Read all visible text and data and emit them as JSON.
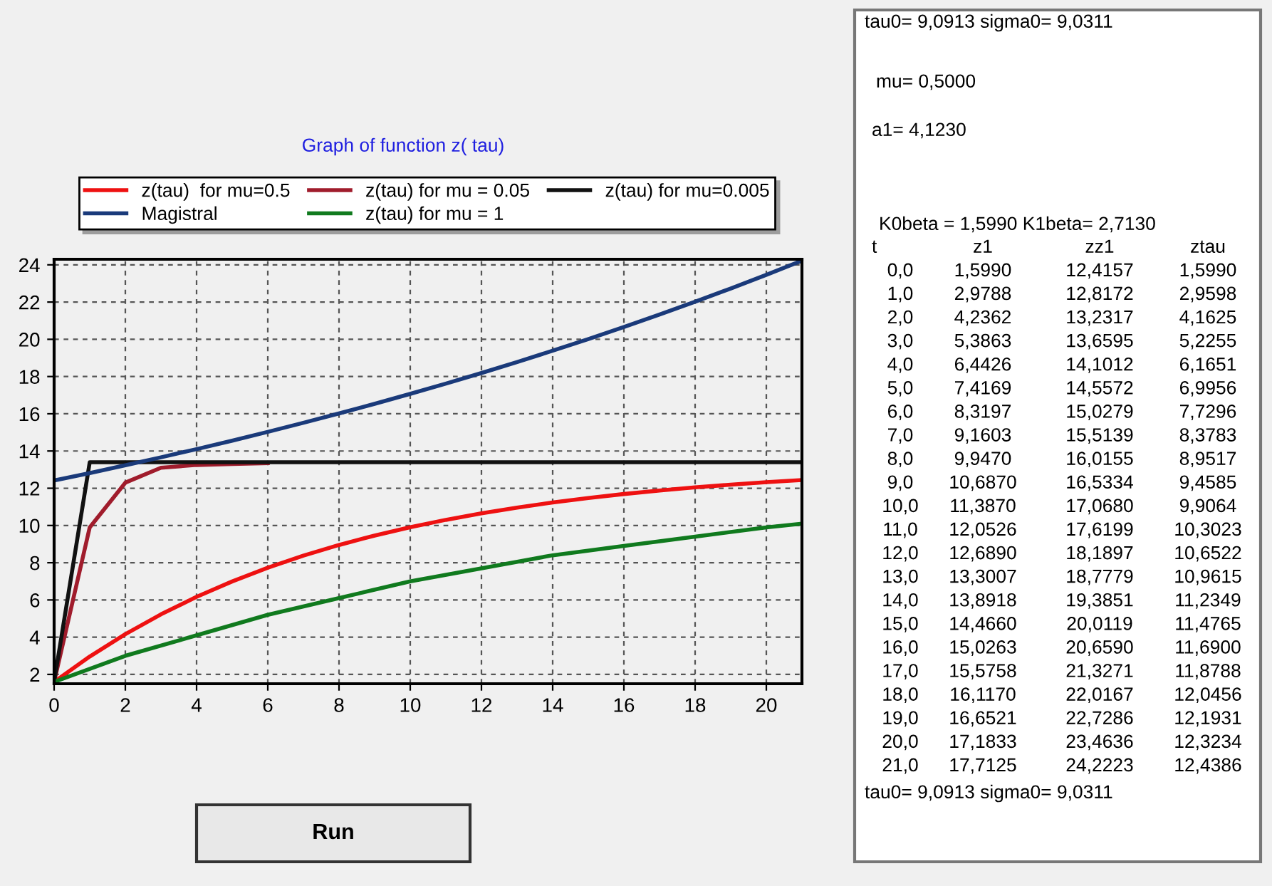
{
  "chart_data": {
    "type": "line",
    "title": "Graph of function z( tau)",
    "x": [
      0,
      1,
      2,
      3,
      4,
      5,
      6,
      7,
      8,
      9,
      10,
      11,
      12,
      13,
      14,
      15,
      16,
      17,
      18,
      19,
      20,
      21
    ],
    "series": [
      {
        "name": "z(tau)  for mu=0.5",
        "color": "#ee1111",
        "values": [
          1.599,
          2.9598,
          4.1625,
          5.2255,
          6.1651,
          6.9956,
          7.7296,
          8.3783,
          8.9517,
          9.4585,
          9.9064,
          10.3023,
          10.6522,
          10.9615,
          11.2349,
          11.4765,
          11.69,
          11.8788,
          12.0456,
          12.1931,
          12.3234,
          12.4386
        ]
      },
      {
        "name": "z(tau) for mu = 0.05",
        "color": "#a01c2c",
        "x": [
          0,
          1,
          2,
          3,
          4,
          5,
          6
        ],
        "values": [
          1.6,
          9.9,
          12.3,
          13.1,
          13.25,
          13.3,
          13.35
        ]
      },
      {
        "name": "z(tau) for mu=0.005",
        "color": "#111111",
        "x": [
          0,
          1,
          21
        ],
        "values": [
          1.6,
          13.4,
          13.4
        ]
      },
      {
        "name": "Magistral",
        "color": "#1a3a7a",
        "values": [
          12.4157,
          12.8172,
          13.2317,
          13.6595,
          14.1012,
          14.5572,
          15.0279,
          15.5139,
          16.0155,
          16.5334,
          17.068,
          17.6199,
          18.1897,
          18.7779,
          19.3851,
          20.0119,
          20.659,
          21.3271,
          22.0167,
          22.7286,
          23.4636,
          24.2223
        ]
      },
      {
        "name": "z(tau) for mu = 1",
        "color": "#107a1e",
        "x": [
          0,
          2,
          4,
          6,
          8,
          10,
          12,
          14,
          16,
          18,
          20,
          21
        ],
        "values": [
          1.6,
          3.0,
          4.1,
          5.2,
          6.1,
          7.0,
          7.7,
          8.4,
          8.9,
          9.4,
          9.9,
          10.1
        ]
      }
    ],
    "xlim": [
      0,
      21
    ],
    "ylim": [
      1.5,
      24.3
    ],
    "xticks": [
      0,
      2,
      4,
      6,
      8,
      10,
      12,
      14,
      16,
      18,
      20
    ],
    "yticks": [
      2,
      4,
      6,
      8,
      10,
      12,
      14,
      16,
      18,
      20,
      22,
      24
    ],
    "grid": true,
    "line_style": "solid",
    "legend": "top",
    "annotations": [
      "tau0= 9,0913 sigma0= 9,0311",
      "mu= 0,5000",
      "a1= 4,1230",
      "K0beta = 1,5990 K1beta= 2,7130",
      "t z1 zz1 ztau",
      "0,0 1,5990 12,4157 1,5990",
      "1,0 2,9788 12,8172 2,9598",
      "2,0 4,2362 13,2317 4,1625",
      "3,0 5,3863 13,6595 5,2255",
      "4,0 6,4426 14,1012 6,1651",
      "5,0 7,4169 14,5572 6,9956",
      "6,0 8,3197 15,0279 7,7296",
      "7,0 9,1603 15,5139 8,3783",
      "8,0 9,9470 16,0155 8,9517",
      "9,0 10,6870 16,5334 9,4585",
      "10,0 11,3870 17,0680 9,9064",
      "11,0 12,0526 17,6199 10,3023",
      "12,0 12,6890 18,1897 10,6522",
      "13,0 13,3007 18,7779 10,9615",
      "14,0 13,8918 19,3851 11,2349",
      "15,0 14,4660 20,0119 11,4765",
      "16,0 15,0263 20,6590 11,6900",
      "17,0 15,5758 21,3271 11,8788",
      "18,0 16,1170 22,0167 12,0456",
      "19,0 16,6521 22,7286 12,1931",
      "20,0 17,1833 23,4636 12,3234",
      "21,0 17,7125 24,2223 12,4386",
      "tau0= 9,0913 sigma0= 9,0311",
      "Run"
    ]
  }
}
